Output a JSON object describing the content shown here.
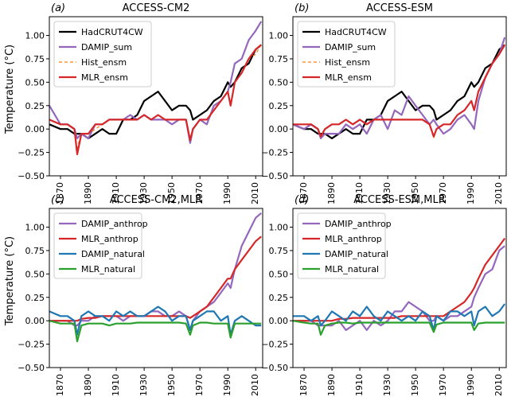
{
  "figure": {
    "ylabel": "Temperature (°C)",
    "xticks": [
      "1870",
      "1890",
      "1910",
      "1930",
      "1950",
      "1970",
      "1990",
      "2010"
    ],
    "yticks": [
      "−0.50",
      "−0.25",
      "0.00",
      "0.25",
      "0.50",
      "0.75",
      "1.00"
    ]
  },
  "colors": {
    "HadCRUT4CW": "#000000",
    "DAMIP_sum": "#9467bd",
    "Hist_ensm": "#ff7f0e",
    "MLR_ensm": "#d62728",
    "DAMIP_anthrop": "#9467bd",
    "MLR_anthrop": "#d62728",
    "DAMIP_natural": "#1f77b4",
    "MLR_natural": "#2ca02c"
  },
  "chart_data": [
    {
      "type": "line",
      "panel_letter": "(a)",
      "title": "ACCESS-CM2",
      "ylabel": "Temperature (°C)",
      "xlim": [
        1862,
        2015
      ],
      "ylim": [
        -0.5,
        1.2
      ],
      "legend_location": "upper-left",
      "x": [
        1862,
        1870,
        1875,
        1880,
        1882,
        1885,
        1890,
        1895,
        1900,
        1905,
        1910,
        1915,
        1920,
        1925,
        1930,
        1935,
        1940,
        1945,
        1950,
        1955,
        1960,
        1963,
        1965,
        1970,
        1975,
        1980,
        1985,
        1990,
        1992,
        1995,
        2000,
        2005,
        2010,
        2014
      ],
      "series": [
        {
          "name": "HadCRUT4CW",
          "values": [
            0.05,
            0.0,
            0.0,
            -0.05,
            -0.05,
            -0.05,
            -0.1,
            -0.05,
            0.0,
            -0.05,
            -0.05,
            0.1,
            0.1,
            0.15,
            0.3,
            0.35,
            0.4,
            0.3,
            0.2,
            0.25,
            0.25,
            0.2,
            0.1,
            0.15,
            0.2,
            0.3,
            0.35,
            0.5,
            0.45,
            0.5,
            0.65,
            0.7,
            0.85,
            0.9
          ]
        },
        {
          "name": "DAMIP_sum",
          "values": [
            0.25,
            0.05,
            0.05,
            0.0,
            -0.1,
            -0.05,
            -0.1,
            0.05,
            0.05,
            0.1,
            0.1,
            0.1,
            0.15,
            0.1,
            0.15,
            0.1,
            0.1,
            0.1,
            0.05,
            0.1,
            0.1,
            -0.15,
            0.0,
            0.1,
            0.05,
            0.25,
            0.3,
            0.4,
            0.5,
            0.7,
            0.75,
            0.95,
            1.05,
            1.15
          ]
        },
        {
          "name": "Hist_ensm",
          "values": [
            0.1,
            0.05,
            0.05,
            0.0,
            -0.2,
            -0.05,
            -0.05,
            0.0,
            0.05,
            0.1,
            0.1,
            0.1,
            0.1,
            0.1,
            0.15,
            0.1,
            0.15,
            0.1,
            0.1,
            0.1,
            0.1,
            -0.1,
            0.0,
            0.1,
            0.1,
            0.2,
            0.3,
            0.4,
            0.25,
            0.5,
            0.6,
            0.75,
            0.8,
            0.9
          ]
        },
        {
          "name": "MLR_ensm",
          "values": [
            0.1,
            0.05,
            0.05,
            0.0,
            -0.27,
            -0.05,
            -0.05,
            0.05,
            0.05,
            0.1,
            0.1,
            0.1,
            0.1,
            0.1,
            0.15,
            0.1,
            0.15,
            0.1,
            0.1,
            0.1,
            0.1,
            -0.12,
            0.0,
            0.1,
            0.1,
            0.2,
            0.3,
            0.4,
            0.25,
            0.5,
            0.6,
            0.75,
            0.85,
            0.9
          ]
        }
      ]
    },
    {
      "type": "line",
      "panel_letter": "(b)",
      "title": "ACCESS-ESM",
      "xlim": [
        1862,
        2015
      ],
      "ylim": [
        -0.5,
        1.2
      ],
      "legend_location": "upper-left",
      "x": [
        1862,
        1870,
        1875,
        1880,
        1882,
        1885,
        1890,
        1895,
        1900,
        1905,
        1910,
        1915,
        1920,
        1925,
        1930,
        1935,
        1940,
        1945,
        1950,
        1955,
        1960,
        1963,
        1965,
        1970,
        1975,
        1980,
        1985,
        1990,
        1992,
        1995,
        2000,
        2005,
        2010,
        2014
      ],
      "series": [
        {
          "name": "HadCRUT4CW",
          "values": [
            0.05,
            0.0,
            0.0,
            -0.05,
            -0.05,
            -0.05,
            -0.1,
            -0.05,
            0.0,
            -0.05,
            -0.05,
            0.1,
            0.1,
            0.15,
            0.3,
            0.35,
            0.4,
            0.3,
            0.2,
            0.25,
            0.25,
            0.2,
            0.1,
            0.15,
            0.2,
            0.3,
            0.35,
            0.5,
            0.45,
            0.5,
            0.65,
            0.7,
            0.85,
            0.9
          ]
        },
        {
          "name": "DAMIP_sum",
          "values": [
            0.05,
            0.0,
            0.05,
            0.0,
            -0.1,
            -0.05,
            -0.05,
            -0.05,
            0.05,
            0.0,
            0.05,
            -0.05,
            0.1,
            0.15,
            0.0,
            0.2,
            0.15,
            0.35,
            0.25,
            0.15,
            0.05,
            0.1,
            0.05,
            -0.05,
            0.0,
            0.1,
            0.15,
            0.05,
            0.0,
            0.3,
            0.55,
            0.7,
            0.8,
            0.98
          ]
        },
        {
          "name": "Hist_ensm",
          "values": [
            0.05,
            0.05,
            0.05,
            0.0,
            -0.08,
            0.0,
            0.05,
            0.05,
            0.1,
            0.05,
            0.1,
            0.05,
            0.1,
            0.1,
            0.1,
            0.1,
            0.1,
            0.1,
            0.1,
            0.1,
            0.05,
            -0.1,
            0.0,
            0.05,
            0.05,
            0.15,
            0.2,
            0.3,
            0.2,
            0.4,
            0.55,
            0.7,
            0.8,
            0.9
          ]
        },
        {
          "name": "MLR_ensm",
          "values": [
            0.05,
            0.05,
            0.05,
            0.0,
            -0.08,
            0.0,
            0.05,
            0.05,
            0.1,
            0.05,
            0.1,
            0.05,
            0.1,
            0.1,
            0.1,
            0.1,
            0.1,
            0.1,
            0.1,
            0.1,
            0.05,
            -0.08,
            0.0,
            0.05,
            0.05,
            0.15,
            0.2,
            0.3,
            0.2,
            0.4,
            0.55,
            0.7,
            0.8,
            0.9
          ]
        }
      ]
    },
    {
      "type": "line",
      "panel_letter": "(c)",
      "title": "ACCESS-CM2,MLR",
      "ylabel": "Temperature (°C)",
      "xlim": [
        1862,
        2015
      ],
      "ylim": [
        -0.5,
        1.2
      ],
      "legend_location": "upper-left",
      "x": [
        1862,
        1870,
        1875,
        1880,
        1882,
        1885,
        1890,
        1895,
        1900,
        1905,
        1910,
        1915,
        1920,
        1925,
        1930,
        1935,
        1940,
        1945,
        1950,
        1955,
        1960,
        1963,
        1965,
        1970,
        1975,
        1980,
        1985,
        1990,
        1992,
        1995,
        2000,
        2005,
        2010,
        2014
      ],
      "series": [
        {
          "name": "DAMIP_anthrop",
          "values": [
            0.0,
            0.0,
            0.0,
            -0.05,
            -0.05,
            0.0,
            0.0,
            0.05,
            0.05,
            0.05,
            0.05,
            0.0,
            0.05,
            0.05,
            0.05,
            0.1,
            0.1,
            0.05,
            0.05,
            0.1,
            0.05,
            -0.1,
            0.0,
            0.1,
            0.15,
            0.2,
            0.3,
            0.4,
            0.35,
            0.55,
            0.8,
            0.95,
            1.1,
            1.15
          ]
        },
        {
          "name": "MLR_anthrop",
          "values": [
            0.0,
            0.0,
            0.0,
            0.0,
            0.0,
            0.02,
            0.03,
            0.03,
            0.05,
            0.05,
            0.05,
            0.05,
            0.05,
            0.05,
            0.05,
            0.05,
            0.05,
            0.05,
            0.05,
            0.05,
            0.05,
            0.03,
            0.05,
            0.1,
            0.15,
            0.25,
            0.35,
            0.45,
            0.45,
            0.55,
            0.65,
            0.75,
            0.85,
            0.9
          ]
        },
        {
          "name": "DAMIP_natural",
          "values": [
            0.1,
            0.05,
            0.05,
            0.0,
            -0.15,
            0.05,
            0.1,
            0.05,
            0.05,
            0.0,
            0.1,
            0.05,
            0.1,
            0.05,
            0.05,
            0.1,
            0.15,
            0.1,
            0.0,
            0.05,
            0.05,
            -0.1,
            0.0,
            0.05,
            0.1,
            0.1,
            0.0,
            0.05,
            -0.15,
            0.0,
            0.05,
            0.0,
            -0.05,
            -0.05
          ]
        },
        {
          "name": "MLR_natural",
          "values": [
            0.0,
            -0.03,
            -0.03,
            -0.03,
            -0.22,
            -0.05,
            -0.03,
            -0.03,
            -0.03,
            -0.05,
            -0.03,
            -0.03,
            -0.03,
            -0.02,
            -0.02,
            -0.02,
            -0.02,
            -0.02,
            -0.02,
            -0.02,
            -0.03,
            -0.15,
            -0.05,
            -0.02,
            -0.02,
            -0.03,
            -0.03,
            -0.03,
            -0.18,
            -0.03,
            -0.03,
            -0.03,
            -0.03,
            -0.03
          ]
        }
      ]
    },
    {
      "type": "line",
      "panel_letter": "(d)",
      "title": "ACCESS-ESM,MLR",
      "xlim": [
        1862,
        2015
      ],
      "ylim": [
        -0.5,
        1.2
      ],
      "legend_location": "upper-left",
      "x": [
        1862,
        1870,
        1875,
        1880,
        1882,
        1885,
        1890,
        1895,
        1900,
        1905,
        1910,
        1915,
        1920,
        1925,
        1930,
        1935,
        1940,
        1945,
        1950,
        1955,
        1960,
        1963,
        1965,
        1970,
        1975,
        1980,
        1985,
        1990,
        1992,
        1995,
        2000,
        2005,
        2010,
        2014
      ],
      "series": [
        {
          "name": "DAMIP_anthrop",
          "values": [
            0.0,
            0.0,
            0.0,
            -0.05,
            -0.05,
            -0.05,
            -0.05,
            0.0,
            -0.1,
            -0.05,
            0.0,
            -0.1,
            0.0,
            -0.05,
            0.0,
            0.1,
            0.1,
            0.2,
            0.15,
            0.1,
            0.0,
            0.0,
            0.05,
            0.0,
            0.05,
            0.05,
            0.1,
            0.15,
            0.25,
            0.35,
            0.5,
            0.55,
            0.75,
            0.8
          ]
        },
        {
          "name": "MLR_anthrop",
          "values": [
            0.0,
            0.0,
            0.0,
            0.0,
            0.0,
            0.0,
            0.0,
            0.02,
            0.02,
            0.03,
            0.03,
            0.03,
            0.03,
            0.03,
            0.03,
            0.03,
            0.05,
            0.05,
            0.05,
            0.05,
            0.05,
            0.05,
            0.05,
            0.05,
            0.1,
            0.15,
            0.2,
            0.3,
            0.35,
            0.45,
            0.6,
            0.7,
            0.8,
            0.88
          ]
        },
        {
          "name": "DAMIP_natural",
          "values": [
            0.05,
            0.05,
            0.0,
            0.05,
            -0.05,
            0.0,
            0.1,
            0.05,
            0.0,
            0.1,
            0.05,
            0.15,
            0.05,
            0.0,
            0.1,
            0.05,
            0.0,
            0.05,
            0.0,
            0.1,
            0.05,
            -0.1,
            0.05,
            0.0,
            0.1,
            0.1,
            0.05,
            0.1,
            -0.05,
            0.1,
            0.15,
            0.05,
            0.1,
            0.18
          ]
        },
        {
          "name": "MLR_natural",
          "values": [
            0.0,
            -0.02,
            -0.03,
            -0.03,
            -0.15,
            -0.05,
            -0.03,
            -0.02,
            -0.02,
            -0.03,
            -0.02,
            -0.02,
            -0.02,
            -0.02,
            -0.02,
            -0.02,
            -0.02,
            -0.02,
            -0.02,
            -0.02,
            -0.02,
            -0.12,
            -0.04,
            -0.02,
            -0.02,
            -0.02,
            -0.02,
            -0.02,
            -0.1,
            -0.03,
            -0.02,
            -0.02,
            -0.02,
            -0.02
          ]
        }
      ]
    }
  ]
}
